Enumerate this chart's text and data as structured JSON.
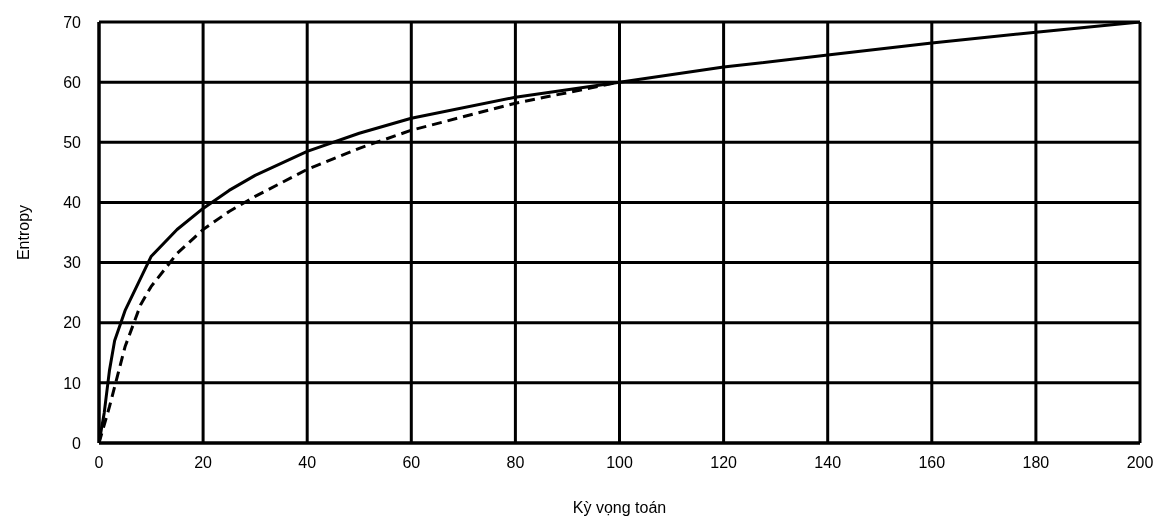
{
  "chart_data": {
    "type": "line",
    "xlabel": "Kỳ vọng toán",
    "ylabel": "Entropy",
    "xlim": [
      0,
      200
    ],
    "xticks": [
      0,
      20,
      40,
      60,
      80,
      100,
      120,
      140,
      160,
      180,
      200
    ],
    "ylim": [
      0,
      70
    ],
    "yticks": [
      0,
      10,
      20,
      30,
      40,
      50,
      60,
      70
    ],
    "grid": true,
    "legend": false,
    "marker": "none",
    "series": [
      {
        "color": "#000000",
        "line_style": "solid",
        "x": [
          0,
          1,
          2,
          3,
          5,
          10,
          15,
          20,
          25,
          30,
          40,
          50,
          60,
          80,
          100,
          120,
          140,
          160,
          180,
          200
        ],
        "values": [
          0,
          5,
          12,
          17,
          22,
          31,
          35.5,
          39,
          42,
          44.5,
          48.5,
          51.5,
          54,
          57.5,
          60,
          62.5,
          64.5,
          66.5,
          68.3,
          70
        ]
      },
      {
        "color": "#000000",
        "line_style": "dashed",
        "x": [
          0,
          2,
          5,
          8,
          10,
          15,
          20,
          25,
          30,
          40,
          50,
          60,
          80,
          100
        ],
        "values": [
          0,
          6,
          16,
          23,
          26,
          31.5,
          35.5,
          38.5,
          41,
          45.5,
          49,
          52,
          56.5,
          60
        ]
      }
    ]
  }
}
